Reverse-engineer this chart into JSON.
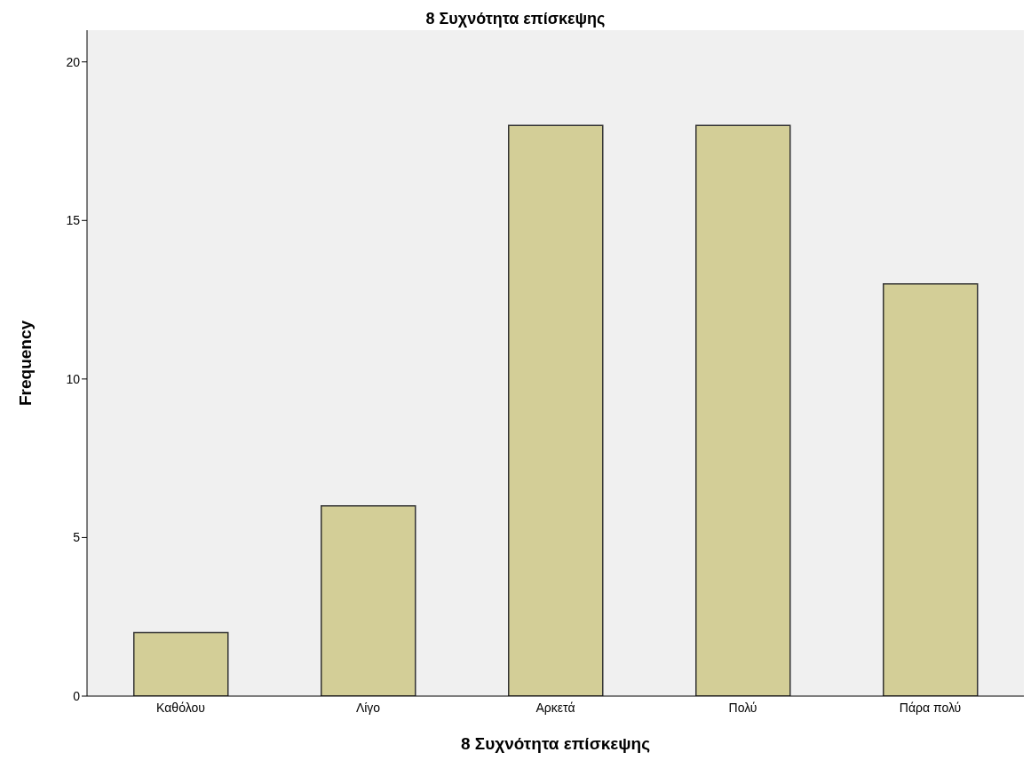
{
  "chart_data": {
    "type": "bar",
    "title": "8 Συχνότητα επίσκεψης",
    "xlabel": "8 Συχνότητα επίσκεψης",
    "ylabel": "Frequency",
    "categories": [
      "Καθόλου",
      "Λίγο",
      "Αρκετά",
      "Πολύ",
      "Πάρα πολύ"
    ],
    "values": [
      2,
      6,
      18,
      18,
      13
    ],
    "color": "#d3ce97",
    "ylim": [
      0,
      21
    ],
    "yticks": [
      0,
      5,
      10,
      15,
      20
    ]
  }
}
